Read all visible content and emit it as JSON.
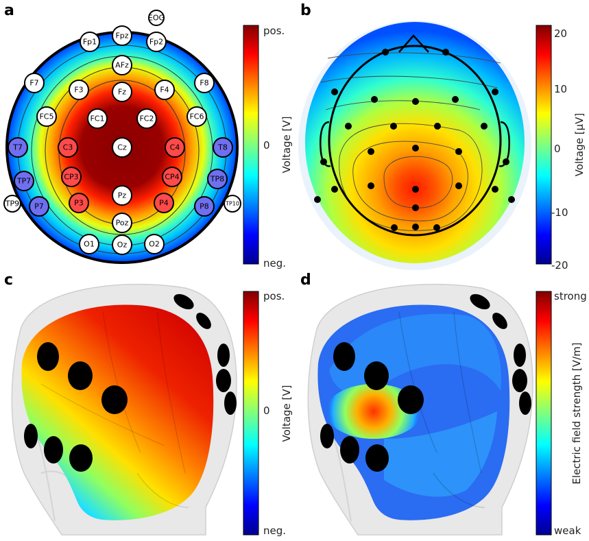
{
  "panels": {
    "a": {
      "label": "a",
      "colorbar": {
        "top": "pos.",
        "mid": "0",
        "bottom": "neg.",
        "title": "Voltage [V]"
      },
      "electrodes": [
        {
          "name": "EOG",
          "type": "ref"
        },
        {
          "name": "Fp1",
          "type": "neutral"
        },
        {
          "name": "Fpz",
          "type": "neutral"
        },
        {
          "name": "Fp2",
          "type": "neutral"
        },
        {
          "name": "AFz",
          "type": "neutral"
        },
        {
          "name": "F7",
          "type": "neutral"
        },
        {
          "name": "F3",
          "type": "neutral"
        },
        {
          "name": "Fz",
          "type": "neutral"
        },
        {
          "name": "F4",
          "type": "neutral"
        },
        {
          "name": "F8",
          "type": "neutral"
        },
        {
          "name": "FC5",
          "type": "neutral"
        },
        {
          "name": "FC1",
          "type": "neutral"
        },
        {
          "name": "FC2",
          "type": "neutral"
        },
        {
          "name": "FC6",
          "type": "neutral"
        },
        {
          "name": "T7",
          "type": "neg"
        },
        {
          "name": "C3",
          "type": "pos"
        },
        {
          "name": "Cz",
          "type": "neutral"
        },
        {
          "name": "C4",
          "type": "pos"
        },
        {
          "name": "T8",
          "type": "neg"
        },
        {
          "name": "TP7",
          "type": "neg"
        },
        {
          "name": "CP3",
          "type": "pos"
        },
        {
          "name": "CP4",
          "type": "pos"
        },
        {
          "name": "TP8",
          "type": "neg"
        },
        {
          "name": "TP9",
          "type": "ref"
        },
        {
          "name": "P7",
          "type": "neg"
        },
        {
          "name": "P3",
          "type": "pos"
        },
        {
          "name": "Pz",
          "type": "neutral"
        },
        {
          "name": "P4",
          "type": "pos"
        },
        {
          "name": "P8",
          "type": "neg"
        },
        {
          "name": "TP10",
          "type": "ref"
        },
        {
          "name": "Poz",
          "type": "neutral"
        },
        {
          "name": "O1",
          "type": "neutral"
        },
        {
          "name": "Oz",
          "type": "neutral"
        },
        {
          "name": "O2",
          "type": "neutral"
        }
      ]
    },
    "b": {
      "label": "b",
      "colorbar": {
        "ticks": [
          "20",
          "10",
          "0",
          "-10",
          "-20"
        ],
        "title": "Voltage [µV]"
      }
    },
    "c": {
      "label": "c",
      "colorbar": {
        "top": "pos.",
        "mid": "0",
        "bottom": "neg.",
        "title": "Voltage [V]"
      }
    },
    "d": {
      "label": "d",
      "colorbar": {
        "top": "strong",
        "bottom": "weak",
        "title": "Electric field strength [V/m]"
      }
    }
  },
  "colors": {
    "electrode_pos": "#ff4a4a",
    "electrode_neg": "#6f6ff0",
    "electrode_neutral": "#ffffff"
  }
}
